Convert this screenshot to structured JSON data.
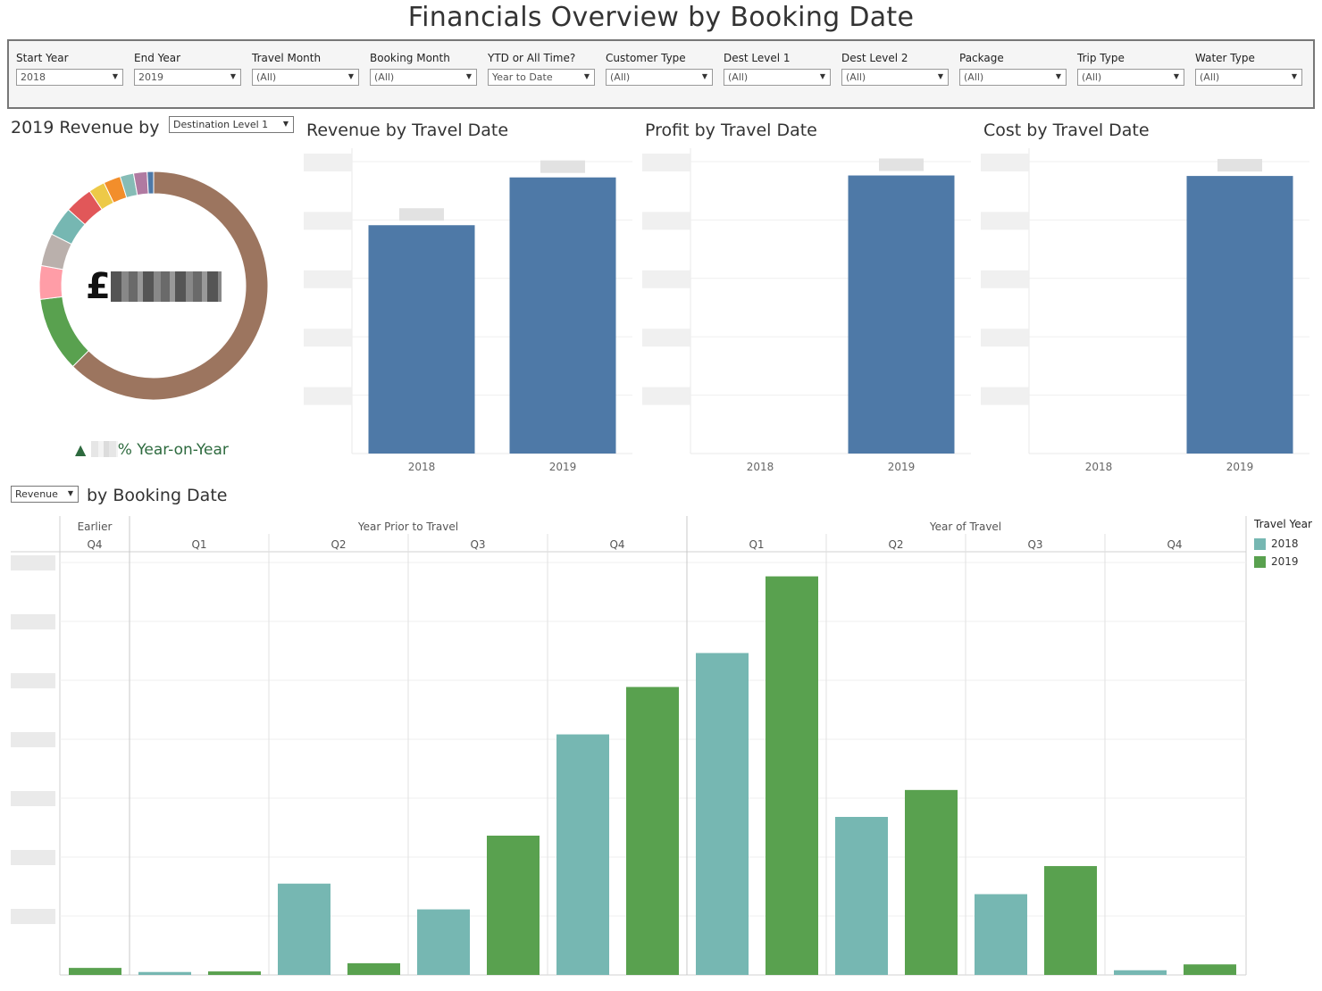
{
  "title": "Financials Overview by Booking Date",
  "filters": [
    {
      "label": "Start Year",
      "value": "2018"
    },
    {
      "label": "End Year",
      "value": "2019"
    },
    {
      "label": "Travel Month",
      "value": "(All)"
    },
    {
      "label": "Booking Month",
      "value": "(All)"
    },
    {
      "label": "YTD or All Time?",
      "value": "Year to Date"
    },
    {
      "label": "Customer Type",
      "value": "(All)"
    },
    {
      "label": "Dest Level 1",
      "value": "(All)"
    },
    {
      "label": "Dest Level 2",
      "value": "(All)"
    },
    {
      "label": "Package",
      "value": "(All)"
    },
    {
      "label": "Trip Type",
      "value": "(All)"
    },
    {
      "label": "Water Type",
      "value": "(All)"
    }
  ],
  "donut": {
    "title": "2019 Revenue by",
    "dimension_select": "Destination Level 1",
    "center_currency": "£",
    "yoy_arrow": "▲",
    "yoy_suffix": "% Year-on-Year"
  },
  "colors": {
    "bar_blue": "#4e79a7",
    "series_2018": "#76b7b2",
    "series_2019": "#59a14f",
    "donut_main": "#9c755f",
    "yoy_green": "#2d6a3e"
  },
  "metric_select": "Revenue",
  "booking_title_suffix": "by Booking Date",
  "chart_data": [
    {
      "type": "pie",
      "title": "2019 Revenue by",
      "slices": [
        {
          "color": "#9c755f",
          "value": 62.0
        },
        {
          "color": "#59a14f",
          "value": 10.5
        },
        {
          "color": "#ff9da7",
          "value": 4.7
        },
        {
          "color": "#bab0ac",
          "value": 4.6
        },
        {
          "color": "#76b7b2",
          "value": 4.1
        },
        {
          "color": "#e15759",
          "value": 3.9
        },
        {
          "color": "#edc948",
          "value": 2.3
        },
        {
          "color": "#f28e2b",
          "value": 2.4
        },
        {
          "color": "#86bcb6",
          "value": 1.9
        },
        {
          "color": "#b07aa1",
          "value": 1.9
        },
        {
          "color": "#4e79a7",
          "value": 0.9
        }
      ]
    },
    {
      "type": "bar",
      "title": "Revenue by Travel Date",
      "categories": [
        "2018",
        "2019"
      ],
      "values": [
        86,
        104
      ],
      "ylim": [
        0,
        115
      ]
    },
    {
      "type": "bar",
      "title": "Profit by Travel Date",
      "categories": [
        "2018",
        "2019"
      ],
      "values": [
        0,
        102
      ],
      "ylim": [
        0,
        112
      ]
    },
    {
      "type": "bar",
      "title": "Cost by Travel Date",
      "categories": [
        "2018",
        "2019"
      ],
      "values": [
        0,
        100
      ],
      "ylim": [
        0,
        110
      ]
    },
    {
      "type": "bar",
      "title": "by Booking Date",
      "header_groups": [
        "Earlier",
        "Year Prior to Travel",
        "Year of Travel"
      ],
      "categories": [
        "Q4",
        "Q1",
        "Q2",
        "Q3",
        "Q4",
        "Q1",
        "Q2",
        "Q3",
        "Q4"
      ],
      "legend_title": "Travel Year",
      "series": [
        {
          "name": "2018",
          "values": [
            null,
            0.5,
            15.6,
            11.2,
            41.1,
            55.0,
            27.0,
            13.8,
            0.8
          ]
        },
        {
          "name": "2019",
          "values": [
            1.2,
            0.6,
            2.0,
            23.8,
            49.2,
            68.1,
            31.6,
            18.6,
            1.8
          ]
        }
      ],
      "ylim": [
        0,
        72
      ]
    }
  ]
}
